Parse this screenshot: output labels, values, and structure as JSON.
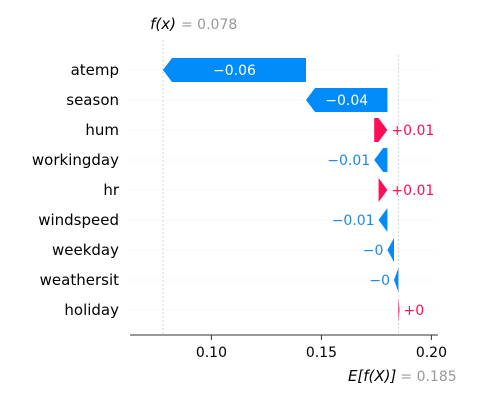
{
  "chart_data": {
    "type": "waterfall",
    "title": "",
    "fx": {
      "label": "f(x)",
      "value_text": "= 0.078",
      "value": 0.078
    },
    "base": {
      "label": "E[f(X)]",
      "value_text": "= 0.185",
      "value": 0.185
    },
    "xlim": [
      0.063,
      0.203
    ],
    "xticks": [
      {
        "value": 0.1,
        "label": "0.10"
      },
      {
        "value": 0.15,
        "label": "0.15"
      },
      {
        "value": 0.2,
        "label": "0.20"
      }
    ],
    "features": [
      {
        "name": "atemp",
        "from": 0.143,
        "to": 0.078,
        "label": "−0.06",
        "label_pos": "inside"
      },
      {
        "name": "season",
        "from": 0.18,
        "to": 0.143,
        "label": "−0.04",
        "label_pos": "inside"
      },
      {
        "name": "hum",
        "from": 0.174,
        "to": 0.18,
        "label": "+0.01",
        "label_pos": "outside"
      },
      {
        "name": "workingday",
        "from": 0.18,
        "to": 0.174,
        "label": "−0.01",
        "label_pos": "outside"
      },
      {
        "name": "hr",
        "from": 0.176,
        "to": 0.18,
        "label": "+0.01",
        "label_pos": "outside"
      },
      {
        "name": "windspeed",
        "from": 0.18,
        "to": 0.176,
        "label": "−0.01",
        "label_pos": "outside"
      },
      {
        "name": "weekday",
        "from": 0.183,
        "to": 0.18,
        "label": "−0",
        "label_pos": "outside"
      },
      {
        "name": "weathersit",
        "from": 0.185,
        "to": 0.183,
        "label": "−0",
        "label_pos": "outside"
      },
      {
        "name": "holiday",
        "from": 0.185,
        "to": 0.1855,
        "label": "+0",
        "label_pos": "outside"
      }
    ],
    "colors": {
      "positive": "#ff0d57",
      "negative": "#008bfb",
      "negative_text": "#1e88e5",
      "muted": "#999999"
    },
    "grid": "dotted-horizontal"
  }
}
